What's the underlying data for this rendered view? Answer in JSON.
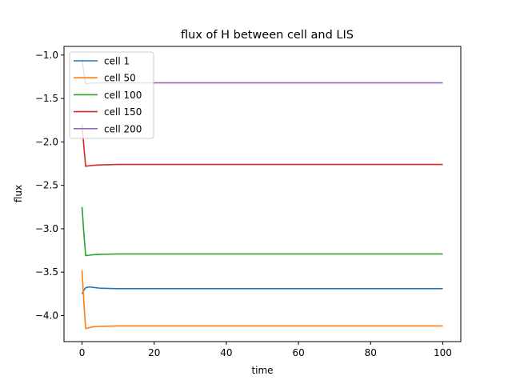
{
  "chart_data": {
    "type": "line",
    "title": "flux of H between cell and LIS",
    "xlabel": "time",
    "ylabel": "flux",
    "xlim": [
      -5,
      105
    ],
    "ylim": [
      -4.3,
      -0.9
    ],
    "xticks": [
      0,
      20,
      40,
      60,
      80,
      100
    ],
    "yticks": [
      -1.0,
      -1.5,
      -2.0,
      -2.5,
      -3.0,
      -3.5,
      -4.0
    ],
    "ytick_labels": [
      "−1.0",
      "−1.5",
      "−2.0",
      "−2.5",
      "−3.0",
      "−3.5",
      "−4.0"
    ],
    "grid": false,
    "legend_position": "upper-left",
    "series": [
      {
        "name": "cell 1",
        "color": "#1f77b4",
        "x": [
          0,
          0.5,
          1,
          2,
          3,
          5,
          10,
          20,
          40,
          60,
          80,
          100
        ],
        "y": [
          -3.75,
          -3.71,
          -3.68,
          -3.67,
          -3.675,
          -3.685,
          -3.69,
          -3.69,
          -3.69,
          -3.69,
          -3.69,
          -3.69
        ]
      },
      {
        "name": "cell 50",
        "color": "#ff7f0e",
        "x": [
          0,
          0.5,
          1,
          2,
          3,
          5,
          10,
          20,
          40,
          60,
          80,
          100
        ],
        "y": [
          -3.48,
          -3.85,
          -4.15,
          -4.14,
          -4.13,
          -4.125,
          -4.12,
          -4.12,
          -4.12,
          -4.12,
          -4.12,
          -4.12
        ]
      },
      {
        "name": "cell 100",
        "color": "#2ca02c",
        "x": [
          0,
          0.5,
          1,
          2,
          3,
          5,
          10,
          20,
          40,
          60,
          80,
          100
        ],
        "y": [
          -2.75,
          -3.05,
          -3.31,
          -3.305,
          -3.3,
          -3.295,
          -3.29,
          -3.29,
          -3.29,
          -3.29,
          -3.29,
          -3.29
        ]
      },
      {
        "name": "cell 150",
        "color": "#d62728",
        "x": [
          0,
          0.5,
          1,
          2,
          3,
          5,
          10,
          20,
          40,
          60,
          80,
          100
        ],
        "y": [
          -1.8,
          -2.05,
          -2.28,
          -2.275,
          -2.27,
          -2.265,
          -2.26,
          -2.26,
          -2.26,
          -2.26,
          -2.26,
          -2.26
        ]
      },
      {
        "name": "cell 200",
        "color": "#9467bd",
        "x": [
          0,
          0.5,
          1,
          2,
          3,
          5,
          10,
          20,
          40,
          60,
          80,
          100
        ],
        "y": [
          -1.05,
          -1.2,
          -1.33,
          -1.325,
          -1.322,
          -1.32,
          -1.32,
          -1.32,
          -1.32,
          -1.32,
          -1.32,
          -1.32
        ]
      }
    ]
  }
}
